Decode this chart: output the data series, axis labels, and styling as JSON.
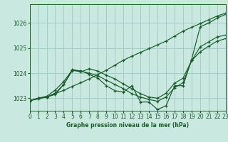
{
  "background_color": "#c8e8e0",
  "grid_color": "#9ecfc5",
  "line_color": "#1a5c2a",
  "title": "Graphe pression niveau de la mer (hPa)",
  "xlim": [
    0,
    23
  ],
  "ylim": [
    1022.5,
    1026.75
  ],
  "yticks": [
    1023,
    1024,
    1025,
    1026
  ],
  "xtick_labels": [
    "0",
    "1",
    "2",
    "3",
    "4",
    "5",
    "6",
    "7",
    "8",
    "9",
    "10",
    "11",
    "12",
    "13",
    "14",
    "15",
    "16",
    "17",
    "18",
    "19",
    "20",
    "21",
    "22",
    "23"
  ],
  "lines": [
    {
      "x": [
        0,
        1,
        2,
        3,
        4,
        5,
        6,
        7,
        8,
        9,
        10,
        11,
        12,
        13,
        14,
        15,
        16,
        17,
        18,
        19,
        20,
        21,
        22,
        23
      ],
      "y": [
        1022.9,
        1023.0,
        1023.05,
        1023.15,
        1023.55,
        1024.1,
        1024.1,
        1023.95,
        1023.8,
        1023.5,
        1023.3,
        1023.25,
        1023.5,
        1022.85,
        1022.85,
        1022.55,
        1022.7,
        1023.5,
        1023.5,
        1024.55,
        1025.85,
        1026.0,
        1026.2,
        1026.35
      ]
    },
    {
      "x": [
        0,
        1,
        2,
        3,
        4,
        5,
        6,
        7,
        8,
        9,
        10,
        11,
        12,
        13,
        14,
        15,
        16,
        17,
        18,
        19,
        20,
        21,
        22,
        23
      ],
      "y": [
        1022.9,
        1022.97,
        1023.05,
        1023.18,
        1023.32,
        1023.47,
        1023.62,
        1023.77,
        1023.95,
        1024.12,
        1024.32,
        1024.52,
        1024.68,
        1024.83,
        1024.98,
        1025.13,
        1025.28,
        1025.48,
        1025.68,
        1025.83,
        1025.98,
        1026.13,
        1026.28,
        1026.4
      ]
    },
    {
      "x": [
        0,
        1,
        2,
        3,
        4,
        5,
        6,
        7,
        8,
        9,
        10,
        11,
        12,
        13,
        14,
        15,
        16,
        17,
        18,
        19,
        20,
        21,
        22,
        23
      ],
      "y": [
        1022.9,
        1023.0,
        1023.05,
        1023.2,
        1023.55,
        1024.15,
        1024.08,
        1024.0,
        1023.9,
        1023.72,
        1023.55,
        1023.38,
        1023.18,
        1023.05,
        1022.95,
        1022.88,
        1023.05,
        1023.42,
        1023.62,
        1024.5,
        1025.05,
        1025.25,
        1025.45,
        1025.52
      ]
    },
    {
      "x": [
        0,
        1,
        2,
        3,
        4,
        5,
        6,
        7,
        8,
        9,
        10,
        11,
        12,
        13,
        14,
        15,
        16,
        17,
        18,
        19,
        20,
        21,
        22,
        23
      ],
      "y": [
        1022.9,
        1023.0,
        1023.08,
        1023.32,
        1023.67,
        1024.12,
        1024.05,
        1024.18,
        1024.08,
        1023.92,
        1023.77,
        1023.57,
        1023.38,
        1023.18,
        1023.05,
        1023.0,
        1023.2,
        1023.6,
        1023.8,
        1024.5,
        1024.85,
        1025.08,
        1025.28,
        1025.38
      ]
    }
  ]
}
